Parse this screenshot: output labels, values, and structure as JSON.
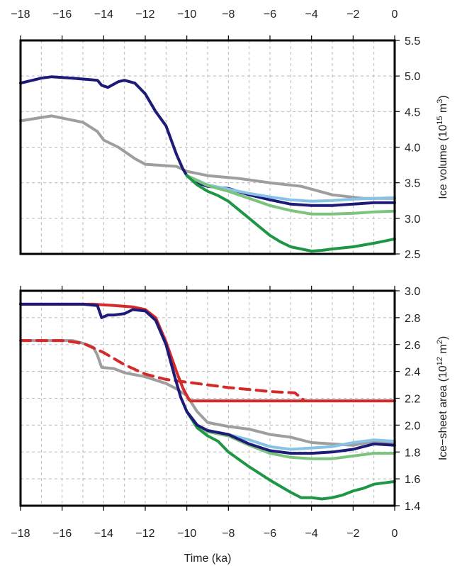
{
  "chart_data": [
    {
      "type": "line",
      "ylabel": "Ice volume (10",
      "ylabel_sup": "15",
      "ylabel_unit": " m",
      "ylabel_sup2": "3",
      "ylabel_end": ")",
      "xlim": [
        -18,
        0
      ],
      "ylim": [
        2.5,
        5.5
      ],
      "x_ticks": [
        "−18",
        "−16",
        "−14",
        "−12",
        "−10",
        "−8",
        "−6",
        "−4",
        "−2",
        "0"
      ],
      "y_ticks": [
        "2.5",
        "3.0",
        "3.5",
        "4.0",
        "4.5",
        "5.0",
        "5.5"
      ],
      "grid": true,
      "series": [
        {
          "color": "#9e9e9e",
          "dash": false,
          "x": [
            -18,
            -16.5,
            -15,
            -14.3,
            -14,
            -13.3,
            -12.5,
            -12,
            -11.5,
            -10.5,
            -10,
            -9,
            -7.5,
            -6,
            -4.5,
            -3,
            -1.5,
            0
          ],
          "y": [
            4.37,
            4.44,
            4.35,
            4.22,
            4.1,
            4.0,
            3.84,
            3.76,
            3.75,
            3.73,
            3.66,
            3.6,
            3.56,
            3.5,
            3.45,
            3.33,
            3.28,
            3.28
          ]
        },
        {
          "color": "#1e1a78",
          "dash": false,
          "x": [
            -18,
            -17,
            -16.5,
            -15.5,
            -14.3,
            -14.1,
            -13.8,
            -13.3,
            -13,
            -12.5,
            -12,
            -11.5,
            -11,
            -10.5,
            -10.2,
            -10,
            -9.5,
            -9,
            -8,
            -7,
            -6,
            -5,
            -4,
            -3,
            -2,
            -1,
            0
          ],
          "y": [
            4.9,
            4.97,
            4.99,
            4.97,
            4.94,
            4.87,
            4.84,
            4.92,
            4.94,
            4.9,
            4.75,
            4.5,
            4.3,
            3.9,
            3.7,
            3.6,
            3.5,
            3.45,
            3.42,
            3.33,
            3.26,
            3.2,
            3.18,
            3.18,
            3.2,
            3.22,
            3.22
          ]
        },
        {
          "color": "#87c3e6",
          "dash": false,
          "x": [
            -10,
            -9,
            -8,
            -7,
            -6,
            -5,
            -4,
            -3,
            -2,
            -1,
            0
          ],
          "y": [
            3.6,
            3.47,
            3.41,
            3.35,
            3.3,
            3.26,
            3.24,
            3.25,
            3.27,
            3.28,
            3.29
          ]
        },
        {
          "color": "#7cc47e",
          "dash": false,
          "x": [
            -10,
            -9,
            -8,
            -7,
            -6,
            -5,
            -4,
            -3,
            -2,
            -1,
            0
          ],
          "y": [
            3.6,
            3.46,
            3.38,
            3.28,
            3.18,
            3.11,
            3.06,
            3.06,
            3.07,
            3.09,
            3.1
          ]
        },
        {
          "color": "#1f9646",
          "dash": false,
          "x": [
            -10,
            -9.5,
            -9,
            -8.5,
            -8,
            -7.5,
            -7,
            -6.5,
            -6,
            -5.5,
            -5,
            -4.5,
            -4,
            -3.5,
            -3,
            -2,
            -1,
            0
          ],
          "y": [
            3.6,
            3.47,
            3.38,
            3.32,
            3.24,
            3.12,
            3.0,
            2.88,
            2.76,
            2.67,
            2.6,
            2.57,
            2.54,
            2.55,
            2.57,
            2.6,
            2.65,
            2.71
          ]
        }
      ]
    },
    {
      "type": "line",
      "ylabel": "Ice−sheet area (10",
      "ylabel_sup": "12",
      "ylabel_unit": " m",
      "ylabel_sup2": "2",
      "ylabel_end": ")",
      "xlabel": "Time (ka)",
      "xlim": [
        -18,
        0
      ],
      "ylim": [
        1.4,
        3.0
      ],
      "x_ticks": [
        "−18",
        "−16",
        "−14",
        "−12",
        "−10",
        "−8",
        "−6",
        "−4",
        "−2",
        "0"
      ],
      "y_ticks": [
        "1.4",
        "1.6",
        "1.8",
        "2.0",
        "2.2",
        "2.4",
        "2.6",
        "2.8",
        "3.0"
      ],
      "grid": true,
      "series": [
        {
          "color": "#9e9e9e",
          "dash": false,
          "x": [
            -18,
            -15.5,
            -15,
            -14.5,
            -14.3,
            -14.1,
            -13.5,
            -13,
            -12,
            -11,
            -10.5,
            -10,
            -9.5,
            -9,
            -8,
            -7,
            -6,
            -5,
            -4,
            -3,
            -2,
            -1,
            0
          ],
          "y": [
            2.63,
            2.63,
            2.61,
            2.58,
            2.52,
            2.43,
            2.42,
            2.39,
            2.36,
            2.31,
            2.27,
            2.22,
            2.1,
            2.02,
            1.99,
            1.97,
            1.93,
            1.91,
            1.87,
            1.86,
            1.85,
            1.88,
            1.87
          ]
        },
        {
          "color": "#d42a2a",
          "dash": true,
          "x": [
            -18,
            -16,
            -15,
            -14,
            -13,
            -12,
            -11,
            -10,
            -8,
            -6,
            -4.8,
            -4.4
          ],
          "y": [
            2.63,
            2.63,
            2.61,
            2.54,
            2.45,
            2.38,
            2.34,
            2.32,
            2.28,
            2.25,
            2.24,
            2.19
          ]
        },
        {
          "color": "#d42a2a",
          "dash": false,
          "x": [
            -18,
            -14.5,
            -13.5,
            -12.6,
            -12,
            -11.5,
            -11,
            -10.5,
            -10.2,
            -9.9,
            -9.8,
            0
          ],
          "y": [
            2.9,
            2.9,
            2.89,
            2.88,
            2.86,
            2.8,
            2.62,
            2.4,
            2.28,
            2.19,
            2.18,
            2.18
          ]
        },
        {
          "color": "#87c3e6",
          "dash": false,
          "x": [
            -10,
            -9.5,
            -9,
            -8,
            -7,
            -6,
            -5,
            -4,
            -3,
            -2,
            -1,
            0
          ],
          "y": [
            2.1,
            2.0,
            1.96,
            1.93,
            1.89,
            1.84,
            1.82,
            1.83,
            1.84,
            1.87,
            1.89,
            1.88
          ]
        },
        {
          "color": "#7cc47e",
          "dash": false,
          "x": [
            -10,
            -9.5,
            -9,
            -8,
            -7,
            -6,
            -5,
            -4,
            -3,
            -2,
            -1,
            0
          ],
          "y": [
            2.1,
            2.0,
            1.95,
            1.92,
            1.85,
            1.79,
            1.76,
            1.75,
            1.75,
            1.77,
            1.79,
            1.79
          ]
        },
        {
          "color": "#1f9646",
          "dash": false,
          "x": [
            -10,
            -9.5,
            -9,
            -8.5,
            -8,
            -7,
            -6,
            -5,
            -4.5,
            -4,
            -3.5,
            -3,
            -2.5,
            -2,
            -1.5,
            -1,
            0
          ],
          "y": [
            2.1,
            1.98,
            1.92,
            1.88,
            1.8,
            1.69,
            1.59,
            1.5,
            1.46,
            1.46,
            1.45,
            1.46,
            1.48,
            1.51,
            1.53,
            1.56,
            1.58
          ]
        },
        {
          "color": "#1e1a78",
          "dash": false,
          "x": [
            -18,
            -15,
            -14.3,
            -14.1,
            -13.8,
            -13.5,
            -13,
            -12.6,
            -12,
            -11.5,
            -11,
            -10.6,
            -10.3,
            -10,
            -9.5,
            -9,
            -8,
            -7,
            -6,
            -5,
            -4,
            -3,
            -2,
            -1,
            0
          ],
          "y": [
            2.9,
            2.9,
            2.89,
            2.8,
            2.82,
            2.82,
            2.83,
            2.86,
            2.85,
            2.78,
            2.6,
            2.37,
            2.21,
            2.1,
            2.0,
            1.96,
            1.93,
            1.86,
            1.81,
            1.79,
            1.79,
            1.8,
            1.82,
            1.86,
            1.85
          ]
        }
      ]
    }
  ]
}
